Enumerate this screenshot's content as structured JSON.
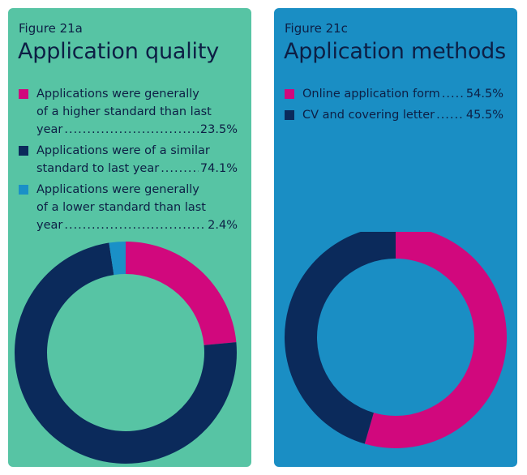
{
  "chart_data": [
    {
      "type": "pie",
      "figure_label": "Figure 21a",
      "title": "Application quality",
      "background": "#57c4a4",
      "legend": [
        {
          "lines": [
            "Applications were generally",
            "of a higher standard than last"
          ],
          "last_line": "year",
          "value_label": "23.5%",
          "color": "#d1087d"
        },
        {
          "lines": [
            "Applications were of a similar"
          ],
          "last_line": "standard to last year",
          "value_label": "74.1%",
          "color": "#0b2a5b"
        },
        {
          "lines": [
            "Applications were generally",
            "of a lower standard than last"
          ],
          "last_line": "year",
          "value_label": "2.4%",
          "color": "#1a90c7"
        }
      ],
      "values": [
        23.5,
        74.1,
        2.4
      ],
      "colors": [
        "#d1087d",
        "#0b2a5b",
        "#1a90c7"
      ]
    },
    {
      "type": "pie",
      "figure_label": "Figure 21c",
      "title": "Application methods",
      "background": "#1a8ec4",
      "legend": [
        {
          "lines": [],
          "last_line": "Online application form",
          "value_label": "54.5%",
          "color": "#d1087d"
        },
        {
          "lines": [],
          "last_line": "CV and covering letter",
          "value_label": "45.5%",
          "color": "#0b2a5b"
        }
      ],
      "values": [
        54.5,
        45.5
      ],
      "colors": [
        "#d1087d",
        "#0b2a5b"
      ]
    }
  ]
}
